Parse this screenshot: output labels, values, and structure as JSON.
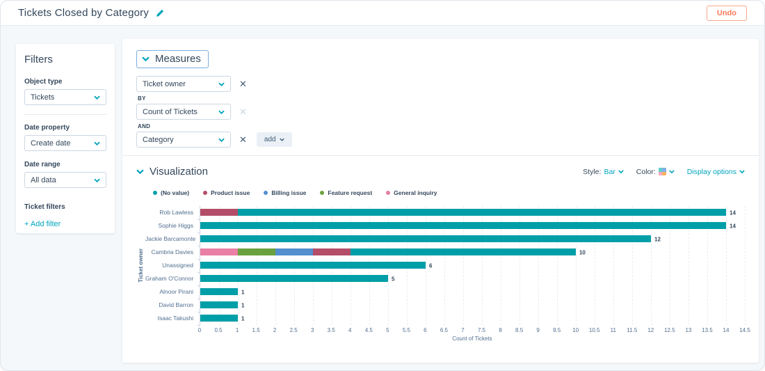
{
  "header": {
    "title": "Tickets Closed by Category",
    "undo_label": "Undo"
  },
  "filters": {
    "heading": "Filters",
    "object_type_label": "Object type",
    "object_type_value": "Tickets",
    "date_property_label": "Date property",
    "date_property_value": "Create date",
    "date_range_label": "Date range",
    "date_range_value": "All data",
    "ticket_filters_label": "Ticket filters",
    "add_filter_label": "+ Add filter"
  },
  "measures": {
    "heading": "Measures",
    "primary_value": "Ticket owner",
    "by_label": "BY",
    "metric_value": "Count of Tickets",
    "and_label": "AND",
    "breakdown_value": "Category",
    "add_label": "add"
  },
  "visualization": {
    "heading": "Visualization",
    "style_label": "Style:",
    "style_value": "Bar",
    "color_label": "Color:",
    "display_options_label": "Display options",
    "swatch_colors": [
      "#5ed1c8",
      "#7fb0e8",
      "#f8a7c1",
      "#fcb25e"
    ]
  },
  "colors": {
    "accent_teal": "#00a4bd",
    "undo_coral": "#ff7a59",
    "text_dark": "#33475b",
    "text_secondary": "#516f90"
  },
  "chart_data": {
    "type": "bar",
    "orientation": "horizontal",
    "stacked": true,
    "xlabel": "Count of Tickets",
    "ylabel": "Ticket owner",
    "xlim": [
      0,
      14.5
    ],
    "tick_step": 0.5,
    "grid": true,
    "legend_position": "top-left",
    "categories": [
      "Rob Lawless",
      "Sophie Higgs",
      "Jackie Barcamonte",
      "Cambria Davies",
      "Unassigned",
      "Graham O'Connor",
      "Alnoor Pirani",
      "David Barron",
      "Isaac Takushi"
    ],
    "series": [
      {
        "name": "(No value)",
        "color": "#009fa8",
        "values": [
          13,
          14,
          12,
          6,
          6,
          5,
          1,
          1,
          1
        ]
      },
      {
        "name": "Product issue",
        "color": "#b44d68",
        "values": [
          1,
          0,
          0,
          1,
          0,
          0,
          0,
          0,
          0
        ]
      },
      {
        "name": "Billing issue",
        "color": "#528fce",
        "values": [
          0,
          0,
          0,
          1,
          0,
          0,
          0,
          0,
          0
        ]
      },
      {
        "name": "Feature request",
        "color": "#6aa13f",
        "values": [
          0,
          0,
          0,
          1,
          0,
          0,
          0,
          0,
          0
        ]
      },
      {
        "name": "General inquiry",
        "color": "#e97fa5",
        "values": [
          0,
          0,
          0,
          1,
          0,
          0,
          0,
          0,
          0
        ]
      }
    ],
    "segment_draw_order": "reverse-of-legend",
    "totals": [
      14,
      14,
      12,
      10,
      6,
      5,
      1,
      1,
      1
    ]
  }
}
